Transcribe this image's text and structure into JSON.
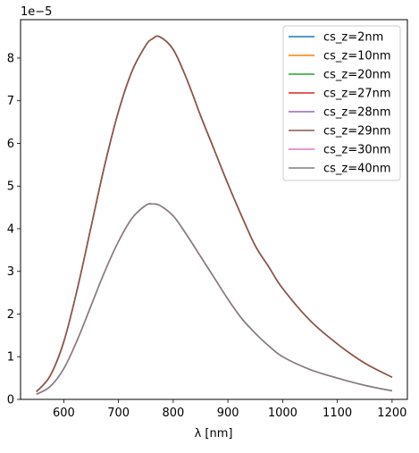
{
  "chart_data": {
    "type": "line",
    "title": "",
    "xlabel": "λ [nm]",
    "ylabel": "",
    "y_offset_text": "1e−5",
    "xlim": [
      521,
      1228
    ],
    "ylim": [
      0,
      8.9
    ],
    "y_scale_exponent": -5,
    "xticks": [
      600,
      700,
      800,
      900,
      1000,
      1100,
      1200
    ],
    "yticks": [
      0,
      1,
      2,
      3,
      4,
      5,
      6,
      7,
      8
    ],
    "grid": false,
    "legend_position": "top-right",
    "x": [
      550,
      575,
      600,
      625,
      650,
      675,
      700,
      725,
      750,
      762,
      775,
      800,
      825,
      850,
      875,
      900,
      925,
      950,
      975,
      1000,
      1050,
      1100,
      1150,
      1200
    ],
    "series": [
      {
        "name": "cs_z=2nm",
        "color": "#1f77b4",
        "values": [
          0.18,
          0.55,
          1.35,
          2.6,
          4.05,
          5.5,
          6.75,
          7.7,
          8.3,
          8.45,
          8.5,
          8.2,
          7.5,
          6.65,
          5.85,
          5.05,
          4.3,
          3.6,
          3.1,
          2.6,
          1.85,
          1.3,
          0.85,
          0.52
        ]
      },
      {
        "name": "cs_z=10nm",
        "color": "#ff7f0e",
        "values": [
          0.12,
          0.3,
          0.72,
          1.4,
          2.2,
          3.0,
          3.7,
          4.25,
          4.55,
          4.58,
          4.55,
          4.3,
          3.85,
          3.35,
          2.85,
          2.35,
          1.9,
          1.55,
          1.25,
          1.0,
          0.7,
          0.5,
          0.33,
          0.2
        ]
      },
      {
        "name": "cs_z=20nm",
        "color": "#2ca02c",
        "values": [
          0.18,
          0.55,
          1.35,
          2.6,
          4.05,
          5.5,
          6.75,
          7.7,
          8.3,
          8.45,
          8.5,
          8.2,
          7.5,
          6.65,
          5.85,
          5.05,
          4.3,
          3.6,
          3.1,
          2.6,
          1.85,
          1.3,
          0.85,
          0.52
        ]
      },
      {
        "name": "cs_z=27nm",
        "color": "#d62728",
        "values": [
          0.18,
          0.55,
          1.35,
          2.6,
          4.05,
          5.5,
          6.75,
          7.7,
          8.3,
          8.45,
          8.5,
          8.2,
          7.5,
          6.65,
          5.85,
          5.05,
          4.3,
          3.6,
          3.1,
          2.6,
          1.85,
          1.3,
          0.85,
          0.52
        ]
      },
      {
        "name": "cs_z=28nm",
        "color": "#9467bd",
        "values": [
          0.12,
          0.3,
          0.72,
          1.4,
          2.2,
          3.0,
          3.7,
          4.25,
          4.55,
          4.58,
          4.55,
          4.3,
          3.85,
          3.35,
          2.85,
          2.35,
          1.9,
          1.55,
          1.25,
          1.0,
          0.7,
          0.5,
          0.33,
          0.2
        ]
      },
      {
        "name": "cs_z=29nm",
        "color": "#8c564b",
        "values": [
          0.18,
          0.55,
          1.35,
          2.6,
          4.05,
          5.5,
          6.75,
          7.7,
          8.3,
          8.45,
          8.5,
          8.2,
          7.5,
          6.65,
          5.85,
          5.05,
          4.3,
          3.6,
          3.1,
          2.6,
          1.85,
          1.3,
          0.85,
          0.52
        ]
      },
      {
        "name": "cs_z=30nm",
        "color": "#e377c2",
        "values": [
          0.12,
          0.3,
          0.72,
          1.4,
          2.2,
          3.0,
          3.7,
          4.25,
          4.55,
          4.58,
          4.55,
          4.3,
          3.85,
          3.35,
          2.85,
          2.35,
          1.9,
          1.55,
          1.25,
          1.0,
          0.7,
          0.5,
          0.33,
          0.2
        ]
      },
      {
        "name": "cs_z=40nm",
        "color": "#7f7f7f",
        "values": [
          0.12,
          0.3,
          0.72,
          1.4,
          2.2,
          3.0,
          3.7,
          4.25,
          4.55,
          4.58,
          4.55,
          4.3,
          3.85,
          3.35,
          2.85,
          2.35,
          1.9,
          1.55,
          1.25,
          1.0,
          0.7,
          0.5,
          0.33,
          0.2
        ]
      }
    ]
  }
}
